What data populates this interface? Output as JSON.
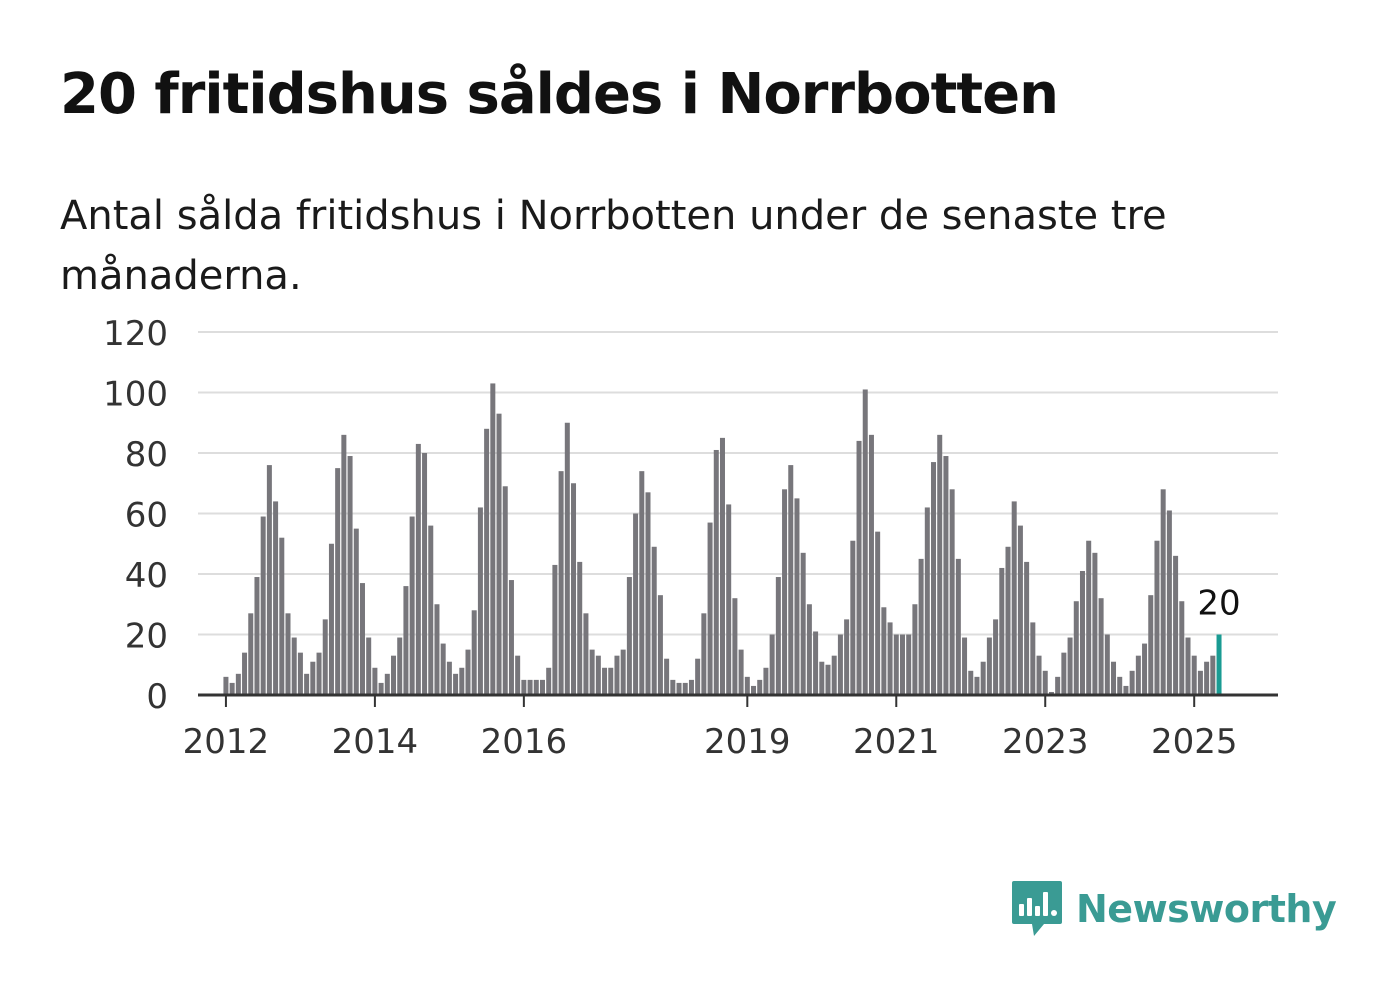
{
  "title": "20 fritidshus såldes i Norrbotten",
  "subtitle": "Antal sålda fritidshus i Norrbotten under de senaste tre månaderna.",
  "brand": {
    "name": "Newsworthy",
    "icon": "newsworthy-logo-icon",
    "color": "#3a9b94"
  },
  "chart_data": {
    "type": "bar",
    "ylim": [
      0,
      120
    ],
    "yticks": [
      0,
      20,
      40,
      60,
      80,
      100,
      120
    ],
    "grid": true,
    "xlim": [
      "2011-09",
      "2026-03"
    ],
    "xticks": [
      {
        "label": "2012",
        "date": "2012-01"
      },
      {
        "label": "2014",
        "date": "2014-01"
      },
      {
        "label": "2016",
        "date": "2016-01"
      },
      {
        "label": "2019",
        "date": "2019-01"
      },
      {
        "label": "2021",
        "date": "2021-01"
      },
      {
        "label": "2023",
        "date": "2023-01"
      },
      {
        "label": "2025",
        "date": "2025-01"
      }
    ],
    "bar_color": "#77767b",
    "highlight_color": "#1a9b93",
    "highlight_label": "20",
    "series": [
      {
        "values": [
          {
            "x": "2012-01",
            "y": 6
          },
          {
            "x": "2012-02",
            "y": 4
          },
          {
            "x": "2012-03",
            "y": 7
          },
          {
            "x": "2012-04",
            "y": 14
          },
          {
            "x": "2012-05",
            "y": 27
          },
          {
            "x": "2012-06",
            "y": 39
          },
          {
            "x": "2012-07",
            "y": 59
          },
          {
            "x": "2012-08",
            "y": 76
          },
          {
            "x": "2012-09",
            "y": 64
          },
          {
            "x": "2012-10",
            "y": 52
          },
          {
            "x": "2012-11",
            "y": 27
          },
          {
            "x": "2012-12",
            "y": 19
          },
          {
            "x": "2013-01",
            "y": 14
          },
          {
            "x": "2013-02",
            "y": 7
          },
          {
            "x": "2013-03",
            "y": 11
          },
          {
            "x": "2013-04",
            "y": 14
          },
          {
            "x": "2013-05",
            "y": 25
          },
          {
            "x": "2013-06",
            "y": 50
          },
          {
            "x": "2013-07",
            "y": 75
          },
          {
            "x": "2013-08",
            "y": 86
          },
          {
            "x": "2013-09",
            "y": 79
          },
          {
            "x": "2013-10",
            "y": 55
          },
          {
            "x": "2013-11",
            "y": 37
          },
          {
            "x": "2013-12",
            "y": 19
          },
          {
            "x": "2014-01",
            "y": 9
          },
          {
            "x": "2014-02",
            "y": 4
          },
          {
            "x": "2014-03",
            "y": 7
          },
          {
            "x": "2014-04",
            "y": 13
          },
          {
            "x": "2014-05",
            "y": 19
          },
          {
            "x": "2014-06",
            "y": 36
          },
          {
            "x": "2014-07",
            "y": 59
          },
          {
            "x": "2014-08",
            "y": 83
          },
          {
            "x": "2014-09",
            "y": 80
          },
          {
            "x": "2014-10",
            "y": 56
          },
          {
            "x": "2014-11",
            "y": 30
          },
          {
            "x": "2014-12",
            "y": 17
          },
          {
            "x": "2015-01",
            "y": 11
          },
          {
            "x": "2015-02",
            "y": 7
          },
          {
            "x": "2015-03",
            "y": 9
          },
          {
            "x": "2015-04",
            "y": 15
          },
          {
            "x": "2015-05",
            "y": 28
          },
          {
            "x": "2015-06",
            "y": 62
          },
          {
            "x": "2015-07",
            "y": 88
          },
          {
            "x": "2015-08",
            "y": 103
          },
          {
            "x": "2015-09",
            "y": 93
          },
          {
            "x": "2015-10",
            "y": 69
          },
          {
            "x": "2015-11",
            "y": 38
          },
          {
            "x": "2015-12",
            "y": 13
          },
          {
            "x": "2016-01",
            "y": 5
          },
          {
            "x": "2016-02",
            "y": 5
          },
          {
            "x": "2016-03",
            "y": 5
          },
          {
            "x": "2016-04",
            "y": 5
          },
          {
            "x": "2016-05",
            "y": 9
          },
          {
            "x": "2016-06",
            "y": 43
          },
          {
            "x": "2016-07",
            "y": 74
          },
          {
            "x": "2016-08",
            "y": 90
          },
          {
            "x": "2016-09",
            "y": 70
          },
          {
            "x": "2016-10",
            "y": 44
          },
          {
            "x": "2016-11",
            "y": 27
          },
          {
            "x": "2016-12",
            "y": 15
          },
          {
            "x": "2017-01",
            "y": 13
          },
          {
            "x": "2017-02",
            "y": 9
          },
          {
            "x": "2017-03",
            "y": 9
          },
          {
            "x": "2017-04",
            "y": 13
          },
          {
            "x": "2017-05",
            "y": 15
          },
          {
            "x": "2017-06",
            "y": 39
          },
          {
            "x": "2017-07",
            "y": 60
          },
          {
            "x": "2017-08",
            "y": 74
          },
          {
            "x": "2017-09",
            "y": 67
          },
          {
            "x": "2017-10",
            "y": 49
          },
          {
            "x": "2017-11",
            "y": 33
          },
          {
            "x": "2017-12",
            "y": 12
          },
          {
            "x": "2018-01",
            "y": 5
          },
          {
            "x": "2018-02",
            "y": 4
          },
          {
            "x": "2018-03",
            "y": 4
          },
          {
            "x": "2018-04",
            "y": 5
          },
          {
            "x": "2018-05",
            "y": 12
          },
          {
            "x": "2018-06",
            "y": 27
          },
          {
            "x": "2018-07",
            "y": 57
          },
          {
            "x": "2018-08",
            "y": 81
          },
          {
            "x": "2018-09",
            "y": 85
          },
          {
            "x": "2018-10",
            "y": 63
          },
          {
            "x": "2018-11",
            "y": 32
          },
          {
            "x": "2018-12",
            "y": 15
          },
          {
            "x": "2019-01",
            "y": 6
          },
          {
            "x": "2019-02",
            "y": 3
          },
          {
            "x": "2019-03",
            "y": 5
          },
          {
            "x": "2019-04",
            "y": 9
          },
          {
            "x": "2019-05",
            "y": 20
          },
          {
            "x": "2019-06",
            "y": 39
          },
          {
            "x": "2019-07",
            "y": 68
          },
          {
            "x": "2019-08",
            "y": 76
          },
          {
            "x": "2019-09",
            "y": 65
          },
          {
            "x": "2019-10",
            "y": 47
          },
          {
            "x": "2019-11",
            "y": 30
          },
          {
            "x": "2019-12",
            "y": 21
          },
          {
            "x": "2020-01",
            "y": 11
          },
          {
            "x": "2020-02",
            "y": 10
          },
          {
            "x": "2020-03",
            "y": 13
          },
          {
            "x": "2020-04",
            "y": 20
          },
          {
            "x": "2020-05",
            "y": 25
          },
          {
            "x": "2020-06",
            "y": 51
          },
          {
            "x": "2020-07",
            "y": 84
          },
          {
            "x": "2020-08",
            "y": 101
          },
          {
            "x": "2020-09",
            "y": 86
          },
          {
            "x": "2020-10",
            "y": 54
          },
          {
            "x": "2020-11",
            "y": 29
          },
          {
            "x": "2020-12",
            "y": 24
          },
          {
            "x": "2021-01",
            "y": 20
          },
          {
            "x": "2021-02",
            "y": 20
          },
          {
            "x": "2021-03",
            "y": 20
          },
          {
            "x": "2021-04",
            "y": 30
          },
          {
            "x": "2021-05",
            "y": 45
          },
          {
            "x": "2021-06",
            "y": 62
          },
          {
            "x": "2021-07",
            "y": 77
          },
          {
            "x": "2021-08",
            "y": 86
          },
          {
            "x": "2021-09",
            "y": 79
          },
          {
            "x": "2021-10",
            "y": 68
          },
          {
            "x": "2021-11",
            "y": 45
          },
          {
            "x": "2021-12",
            "y": 19
          },
          {
            "x": "2022-01",
            "y": 8
          },
          {
            "x": "2022-02",
            "y": 6
          },
          {
            "x": "2022-03",
            "y": 11
          },
          {
            "x": "2022-04",
            "y": 19
          },
          {
            "x": "2022-05",
            "y": 25
          },
          {
            "x": "2022-06",
            "y": 42
          },
          {
            "x": "2022-07",
            "y": 49
          },
          {
            "x": "2022-08",
            "y": 64
          },
          {
            "x": "2022-09",
            "y": 56
          },
          {
            "x": "2022-10",
            "y": 44
          },
          {
            "x": "2022-11",
            "y": 24
          },
          {
            "x": "2022-12",
            "y": 13
          },
          {
            "x": "2023-01",
            "y": 8
          },
          {
            "x": "2023-02",
            "y": 1
          },
          {
            "x": "2023-03",
            "y": 6
          },
          {
            "x": "2023-04",
            "y": 14
          },
          {
            "x": "2023-05",
            "y": 19
          },
          {
            "x": "2023-06",
            "y": 31
          },
          {
            "x": "2023-07",
            "y": 41
          },
          {
            "x": "2023-08",
            "y": 51
          },
          {
            "x": "2023-09",
            "y": 47
          },
          {
            "x": "2023-10",
            "y": 32
          },
          {
            "x": "2023-11",
            "y": 20
          },
          {
            "x": "2023-12",
            "y": 11
          },
          {
            "x": "2024-01",
            "y": 6
          },
          {
            "x": "2024-02",
            "y": 3
          },
          {
            "x": "2024-03",
            "y": 8
          },
          {
            "x": "2024-04",
            "y": 13
          },
          {
            "x": "2024-05",
            "y": 17
          },
          {
            "x": "2024-06",
            "y": 33
          },
          {
            "x": "2024-07",
            "y": 51
          },
          {
            "x": "2024-08",
            "y": 68
          },
          {
            "x": "2024-09",
            "y": 61
          },
          {
            "x": "2024-10",
            "y": 46
          },
          {
            "x": "2024-11",
            "y": 31
          },
          {
            "x": "2024-12",
            "y": 19
          },
          {
            "x": "2025-01",
            "y": 13
          },
          {
            "x": "2025-02",
            "y": 8
          },
          {
            "x": "2025-03",
            "y": 11
          },
          {
            "x": "2025-04",
            "y": 13
          },
          {
            "x": "2025-05",
            "y": 20
          }
        ]
      }
    ]
  }
}
